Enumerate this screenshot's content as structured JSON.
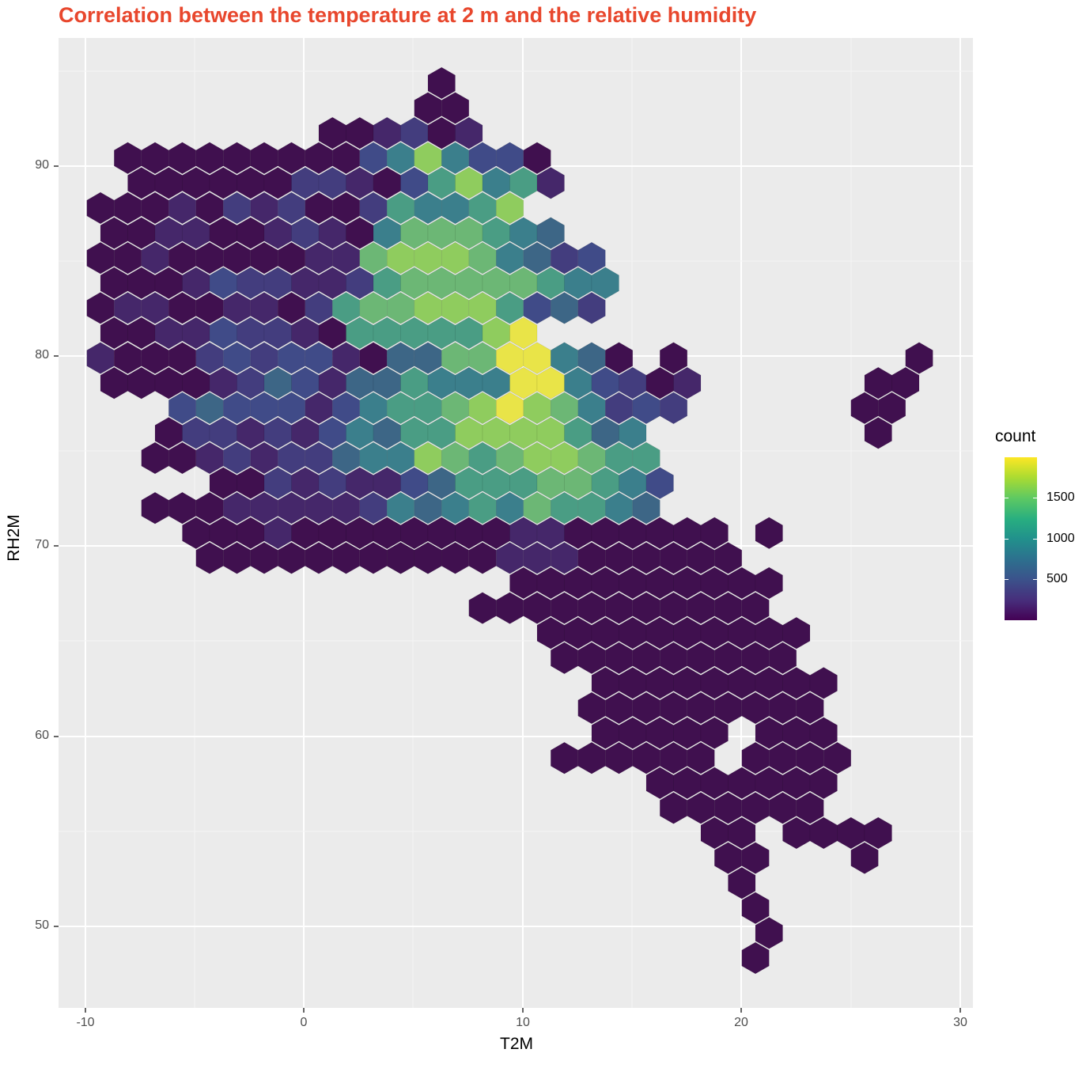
{
  "title": "Correlation between the temperature at 2 m and the relative humidity",
  "colors": {
    "title": "#e8472d",
    "panel_bg": "#ebebeb",
    "grid": "#ffffff",
    "levels": [
      "#40104f",
      "#45276a",
      "#433d7e",
      "#404b88",
      "#3d6686",
      "#3b7f8c",
      "#4a9d84",
      "#6cb775",
      "#8fcc5e",
      "#e9e448"
    ]
  },
  "chart_data": {
    "type": "heatmap",
    "subtype": "hexbin",
    "title": "Correlation between the temperature at 2 m and the relative humidity",
    "xlabel": "T2M",
    "ylabel": "RH2M",
    "xlim": [
      -11.3,
      30.5
    ],
    "ylim": [
      45.9,
      96.8
    ],
    "x_ticks": [
      -10,
      0,
      10,
      20,
      30
    ],
    "y_ticks": [
      50,
      60,
      70,
      80,
      90
    ],
    "grid": true,
    "legend": {
      "title": "count",
      "position": "right",
      "type": "colorbar",
      "palette": "viridis",
      "ticks": [
        500,
        1000,
        1500
      ],
      "range": [
        1,
        1950
      ]
    },
    "hex_grid": {
      "note": "rows top-to-bottom; each char is a viridis level 0-9 (0=lowest count, 9=highest ~1900); '.' = empty. Row k center y_px = 105 + k*31.6; col c center x_px = 127 + c*34.5 (+17.25 when k is even).",
      "approx_count_per_level": [
        50,
        200,
        350,
        500,
        750,
        1000,
        1150,
        1350,
        1550,
        1850
      ],
      "rows": [
        "............0",
        "............00",
        "........001201",
        ".0000000003585330",
        ".0000002210368561",
        "0001021200265568",
        "00110012105777654",
        "0010000011788875423",
        "0001322112677777655",
        "0110011026778886342",
        "0011322106666689...",
        "10002323310447799540.0",
        "0000124314465559953201",
        "...3433313566789875232",
        "..022121354668888645",
        "..0012122455876788766",
        "....00212113466677653",
        "..0001111125456576654",
        "...0001000000111......",
        "....000000001",
        "............",
        "............"
      ]
    }
  },
  "axes": {
    "x": {
      "label": "T2M",
      "ticks": [
        "-10",
        "0",
        "10",
        "20",
        "30"
      ]
    },
    "y": {
      "label": "RH2M",
      "ticks": [
        "90",
        "80",
        "70",
        "60",
        "50"
      ]
    }
  },
  "legend": {
    "title": "count",
    "labels": [
      "1500",
      "1000",
      "500"
    ]
  }
}
